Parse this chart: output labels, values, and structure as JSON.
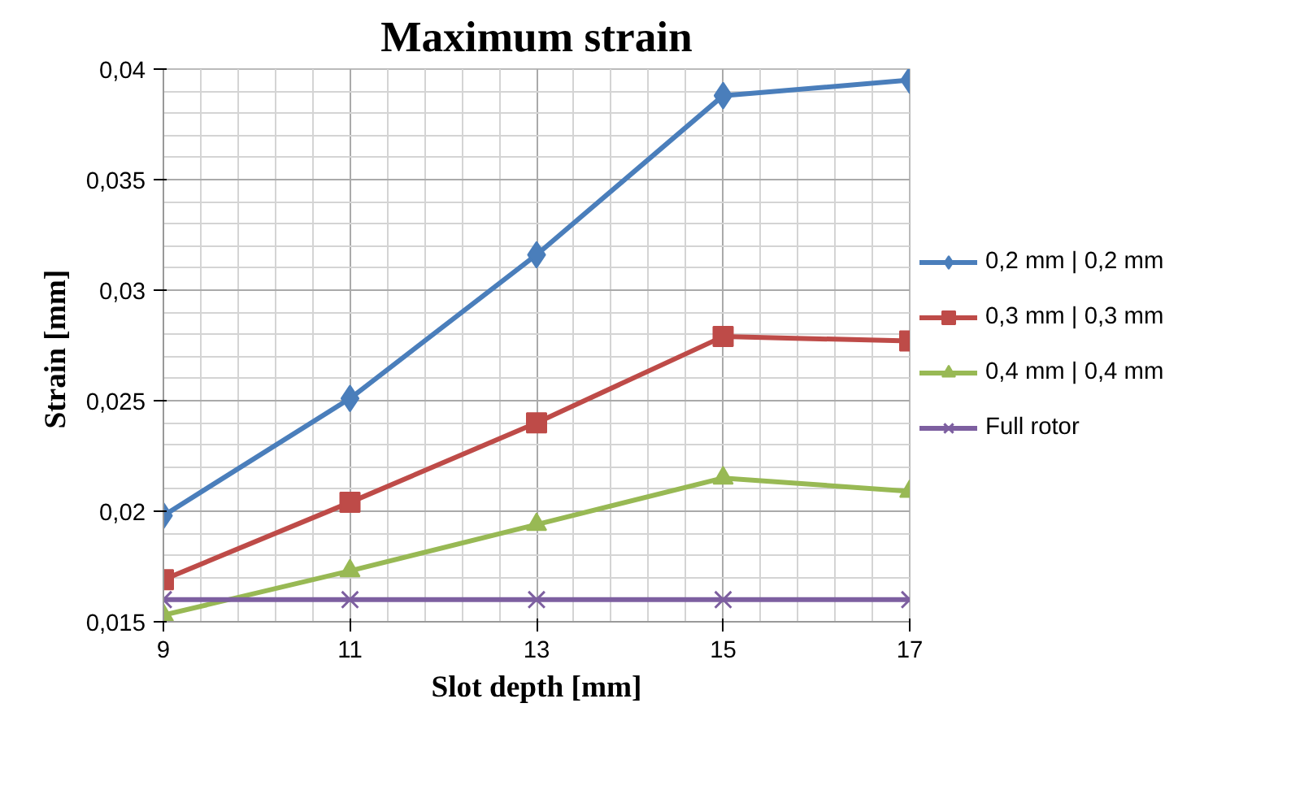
{
  "chart_data": {
    "type": "line",
    "title": "Maximum strain",
    "xlabel": "Slot depth [mm]",
    "ylabel": "Strain  [mm]",
    "x": [
      9,
      11,
      13,
      15,
      17
    ],
    "xlim": [
      9,
      17
    ],
    "xticks": [
      9,
      11,
      13,
      15,
      17
    ],
    "ylim": [
      0.015,
      0.04
    ],
    "yticks": [
      {
        "value": 0.015,
        "label": "0,015"
      },
      {
        "value": 0.02,
        "label": "0,02"
      },
      {
        "value": 0.025,
        "label": "0,025"
      },
      {
        "value": 0.03,
        "label": "0,03"
      },
      {
        "value": 0.035,
        "label": "0,035"
      },
      {
        "value": 0.04,
        "label": "0,04"
      }
    ],
    "grid": true,
    "legend": "right",
    "series": [
      {
        "name": "0,2 mm | 0,2 mm",
        "color": "#4a7ebb",
        "marker": "diamond",
        "values": [
          0.0198,
          0.0251,
          0.0316,
          0.0388,
          0.0395
        ]
      },
      {
        "name": "0,3 mm | 0,3 mm",
        "color": "#be4b48",
        "marker": "square",
        "values": [
          0.0169,
          0.0204,
          0.024,
          0.0279,
          0.0277
        ]
      },
      {
        "name": "0,4 mm | 0,4 mm",
        "color": "#98b954",
        "marker": "triangle",
        "values": [
          0.0153,
          0.0173,
          0.0194,
          0.0215,
          0.0209
        ]
      },
      {
        "name": "Full rotor",
        "color": "#7d5fa0",
        "marker": "cross",
        "values": [
          0.016,
          0.016,
          0.016,
          0.016,
          0.016
        ]
      }
    ]
  }
}
